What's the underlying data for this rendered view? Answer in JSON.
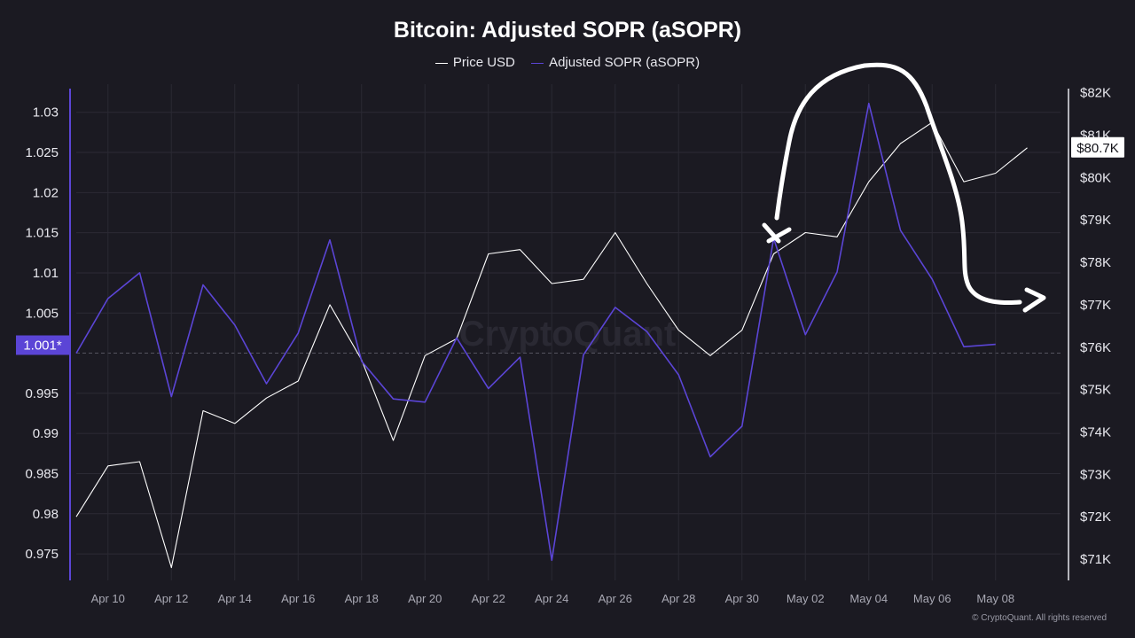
{
  "title": "Bitcoin: Adjusted SOPR (aSOPR)",
  "legend": [
    {
      "name": "Price USD",
      "color": "#ffffff"
    },
    {
      "name": "Adjusted SOPR (aSOPR)",
      "color": "#5b45d6"
    }
  ],
  "copyright": "© CryptoQuant. All rights reserved",
  "watermark": "CryptoQuant",
  "chart_data": {
    "type": "line",
    "title": "Bitcoin: Adjusted SOPR (aSOPR)",
    "x": [
      "Apr 09",
      "Apr 10",
      "Apr 11",
      "Apr 12",
      "Apr 13",
      "Apr 14",
      "Apr 15",
      "Apr 16",
      "Apr 17",
      "Apr 18",
      "Apr 19",
      "Apr 20",
      "Apr 21",
      "Apr 22",
      "Apr 23",
      "Apr 24",
      "Apr 25",
      "Apr 26",
      "Apr 27",
      "Apr 28",
      "Apr 29",
      "Apr 30",
      "May 01",
      "May 02",
      "May 03",
      "May 04",
      "May 05",
      "May 06",
      "May 07",
      "May 08",
      "May 09"
    ],
    "xticks": [
      "Apr 10",
      "Apr 12",
      "Apr 14",
      "Apr 16",
      "Apr 18",
      "Apr 20",
      "Apr 22",
      "Apr 24",
      "Apr 26",
      "Apr 28",
      "Apr 30",
      "May 02",
      "May 04",
      "May 06",
      "May 08"
    ],
    "left_axis": {
      "ylim": [
        0.9717,
        1.0335
      ],
      "ticks": [
        1.03,
        1.025,
        1.02,
        1.015,
        1.01,
        1.005,
        0.995,
        0.99,
        0.985,
        0.98,
        0.975
      ],
      "tick_labels": [
        "1.03",
        "1.025",
        "1.02",
        "1.015",
        "1.01",
        "1.005",
        "0.995",
        "0.99",
        "0.985",
        "0.98",
        "0.975"
      ],
      "marker_value": 1.001,
      "marker_label": "1.001*",
      "reference_line": 1.0
    },
    "right_axis": {
      "ylim": [
        70500,
        82200
      ],
      "ticks": [
        82000,
        81000,
        80000,
        79000,
        78000,
        77000,
        76000,
        75000,
        74000,
        73000,
        72000,
        71000
      ],
      "tick_labels": [
        "$82K",
        "$81K",
        "$80K",
        "$79K",
        "$78K",
        "$77K",
        "$76K",
        "$75K",
        "$74K",
        "$73K",
        "$72K",
        "$71K"
      ],
      "current_value_label": "$80.7K"
    },
    "series": [
      {
        "name": "Price USD",
        "axis": "right",
        "color": "#ffffff",
        "values": [
          72000,
          73200,
          73300,
          70800,
          74500,
          74200,
          74800,
          75200,
          77000,
          75700,
          73800,
          75800,
          76200,
          78200,
          78300,
          77500,
          77600,
          78700,
          77500,
          76400,
          75800,
          76400,
          78200,
          78700,
          78600,
          79900,
          80800,
          81300,
          79900,
          80100,
          80700
        ]
      },
      {
        "name": "Adjusted SOPR (aSOPR)",
        "axis": "left",
        "color": "#5b45d6",
        "values": [
          1.0,
          1.0068,
          1.01,
          0.9946,
          1.0085,
          1.0035,
          0.9962,
          1.0025,
          1.0141,
          0.999,
          0.9943,
          0.9939,
          1.0019,
          0.9956,
          0.9995,
          0.9742,
          0.9998,
          1.0057,
          1.0027,
          0.9973,
          0.9871,
          0.9909,
          1.0143,
          1.0023,
          1.0101,
          1.0311,
          1.0153,
          1.0092,
          1.0008,
          1.0011,
          null
        ]
      }
    ],
    "grid": true,
    "legend_position": "top-center"
  }
}
